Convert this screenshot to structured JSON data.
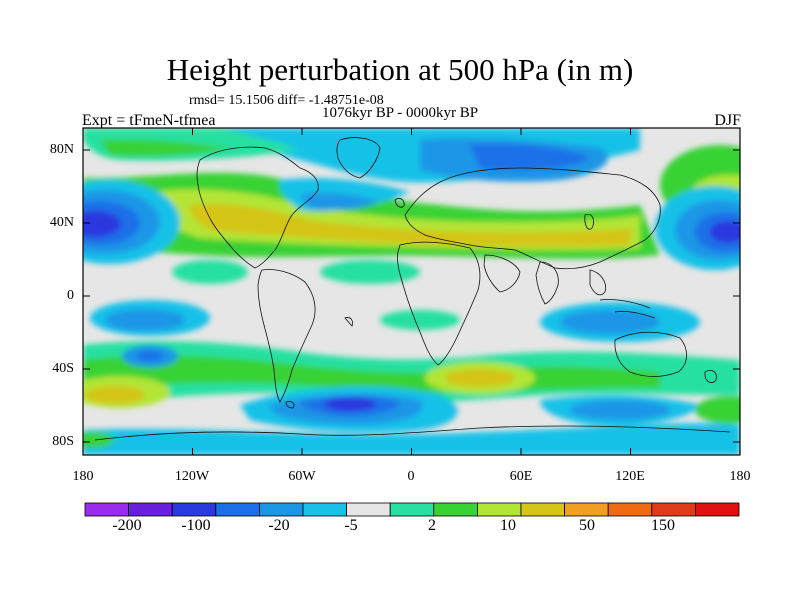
{
  "title": "Height perturbation at 500 hPa (in m)",
  "stats_line": "rmsd= 15.1506 diff= -1.48751e-08",
  "period": "1076kyr BP - 0000kyr BP",
  "experiment": "Expt = tFmeN-tfmea",
  "season": "DJF",
  "lat_ticks": [
    "80N",
    "40N",
    "0",
    "40S",
    "80S"
  ],
  "lon_ticks": [
    "180",
    "120W",
    "60W",
    "0",
    "60E",
    "120E",
    "180"
  ],
  "colorbar": {
    "labels": [
      "-200",
      "-100",
      "-20",
      "-5",
      "2",
      "10",
      "50",
      "150"
    ],
    "colors": [
      "#9a2bef",
      "#6a1fe0",
      "#2b38df",
      "#1c6fe8",
      "#1a96e6",
      "#18c1e8",
      "#e6e6e6",
      "#27e0a1",
      "#38d234",
      "#b3e534",
      "#d4c516",
      "#f0a020",
      "#f06a10",
      "#e13a1a",
      "#e01010"
    ]
  },
  "icons": [
    "world-coastlines"
  ]
}
